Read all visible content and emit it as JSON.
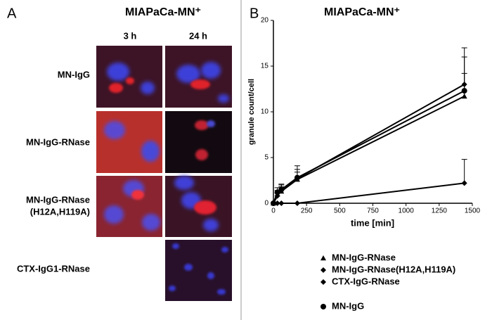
{
  "panel_a": {
    "label": "A",
    "title": "MIAPaCa-MN⁺",
    "columns": [
      "3 h",
      "24 h"
    ],
    "rows": [
      [
        "MN-IgG"
      ],
      [
        "MN-IgG-RNase"
      ],
      [
        "MN-IgG-RNase",
        "(H12A,H119A)"
      ],
      [
        "CTX-IgG1-RNase"
      ]
    ]
  },
  "panel_b_label": "B",
  "chart_data": {
    "type": "line",
    "title": "MIAPaCa-MN⁺",
    "x_label": "time [min]",
    "y_label": "granule count/cell",
    "x": [
      0,
      30,
      60,
      180,
      1440
    ],
    "series": [
      {
        "name": "MN-IgG-RNase",
        "color": "#000000",
        "marker": "triangle",
        "values": [
          0,
          1.0,
          1.3,
          2.6,
          11.7
        ],
        "errors": [
          0,
          0.4,
          0.5,
          0.8,
          2.5
        ]
      },
      {
        "name": "MN-IgG-RNase(H12A,H119A)",
        "color": "#000000",
        "marker": "diamond",
        "values": [
          0,
          0.8,
          1.4,
          2.7,
          13.0
        ],
        "errors": [
          0,
          0.3,
          0.6,
          1.4,
          4.0
        ]
      },
      {
        "name": "CTX-IgG-RNase",
        "color": "#000000",
        "marker": "diamond",
        "values": [
          0,
          0,
          0,
          0,
          2.2
        ],
        "errors": [
          0,
          0,
          0,
          0,
          2.6
        ]
      },
      {
        "name": "MN-IgG",
        "color": "#000000",
        "marker": "circle",
        "values": [
          0,
          1.2,
          1.5,
          2.8,
          12.3
        ],
        "errors": [
          0,
          0.5,
          0.6,
          0.9,
          3.7
        ]
      }
    ],
    "xlim": [
      0,
      1500
    ],
    "xticks": [
      0,
      250,
      500,
      750,
      1000,
      1250,
      1500
    ],
    "ylim": [
      0,
      20
    ],
    "yticks": [
      0,
      5,
      10,
      15,
      20
    ],
    "grid": false,
    "legend": "bottom"
  }
}
